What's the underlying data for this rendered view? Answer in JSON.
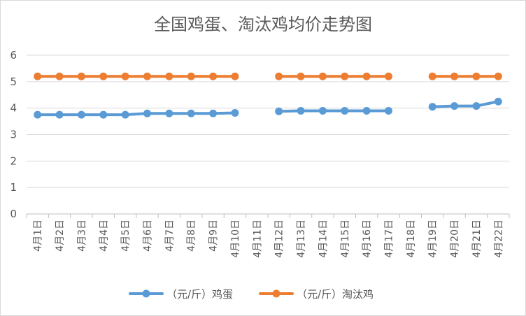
{
  "chart_data": {
    "type": "line",
    "title": "全国鸡蛋、淘汰鸡均价走势图",
    "categories": [
      "4月1日",
      "4月2日",
      "4月3日",
      "4月4日",
      "4月5日",
      "4月6日",
      "4月7日",
      "4月8日",
      "4月9日",
      "4月10日",
      "4月11日",
      "4月12日",
      "4月13日",
      "4月14日",
      "4月15日",
      "4月16日",
      "4月17日",
      "4月18日",
      "4月19日",
      "4月20日",
      "4月21日",
      "4月22日"
    ],
    "series": [
      {
        "name": "（元/斤）鸡蛋",
        "color": "#5b9bd5",
        "values": [
          3.75,
          3.75,
          3.75,
          3.75,
          3.75,
          3.8,
          3.8,
          3.8,
          3.8,
          3.82,
          null,
          3.88,
          3.9,
          3.9,
          3.9,
          3.9,
          3.9,
          null,
          4.05,
          4.08,
          4.08,
          4.25
        ]
      },
      {
        "name": "（元/斤）淘汰鸡",
        "color": "#ed7d31",
        "values": [
          5.2,
          5.2,
          5.2,
          5.2,
          5.2,
          5.2,
          5.2,
          5.2,
          5.2,
          5.2,
          null,
          5.2,
          5.2,
          5.2,
          5.2,
          5.2,
          5.2,
          null,
          5.2,
          5.2,
          5.2,
          5.2
        ]
      }
    ],
    "ylim": [
      0,
      6
    ],
    "yticks": [
      0,
      1,
      2,
      3,
      4,
      5,
      6
    ],
    "grid": true,
    "legend": "bottom"
  }
}
